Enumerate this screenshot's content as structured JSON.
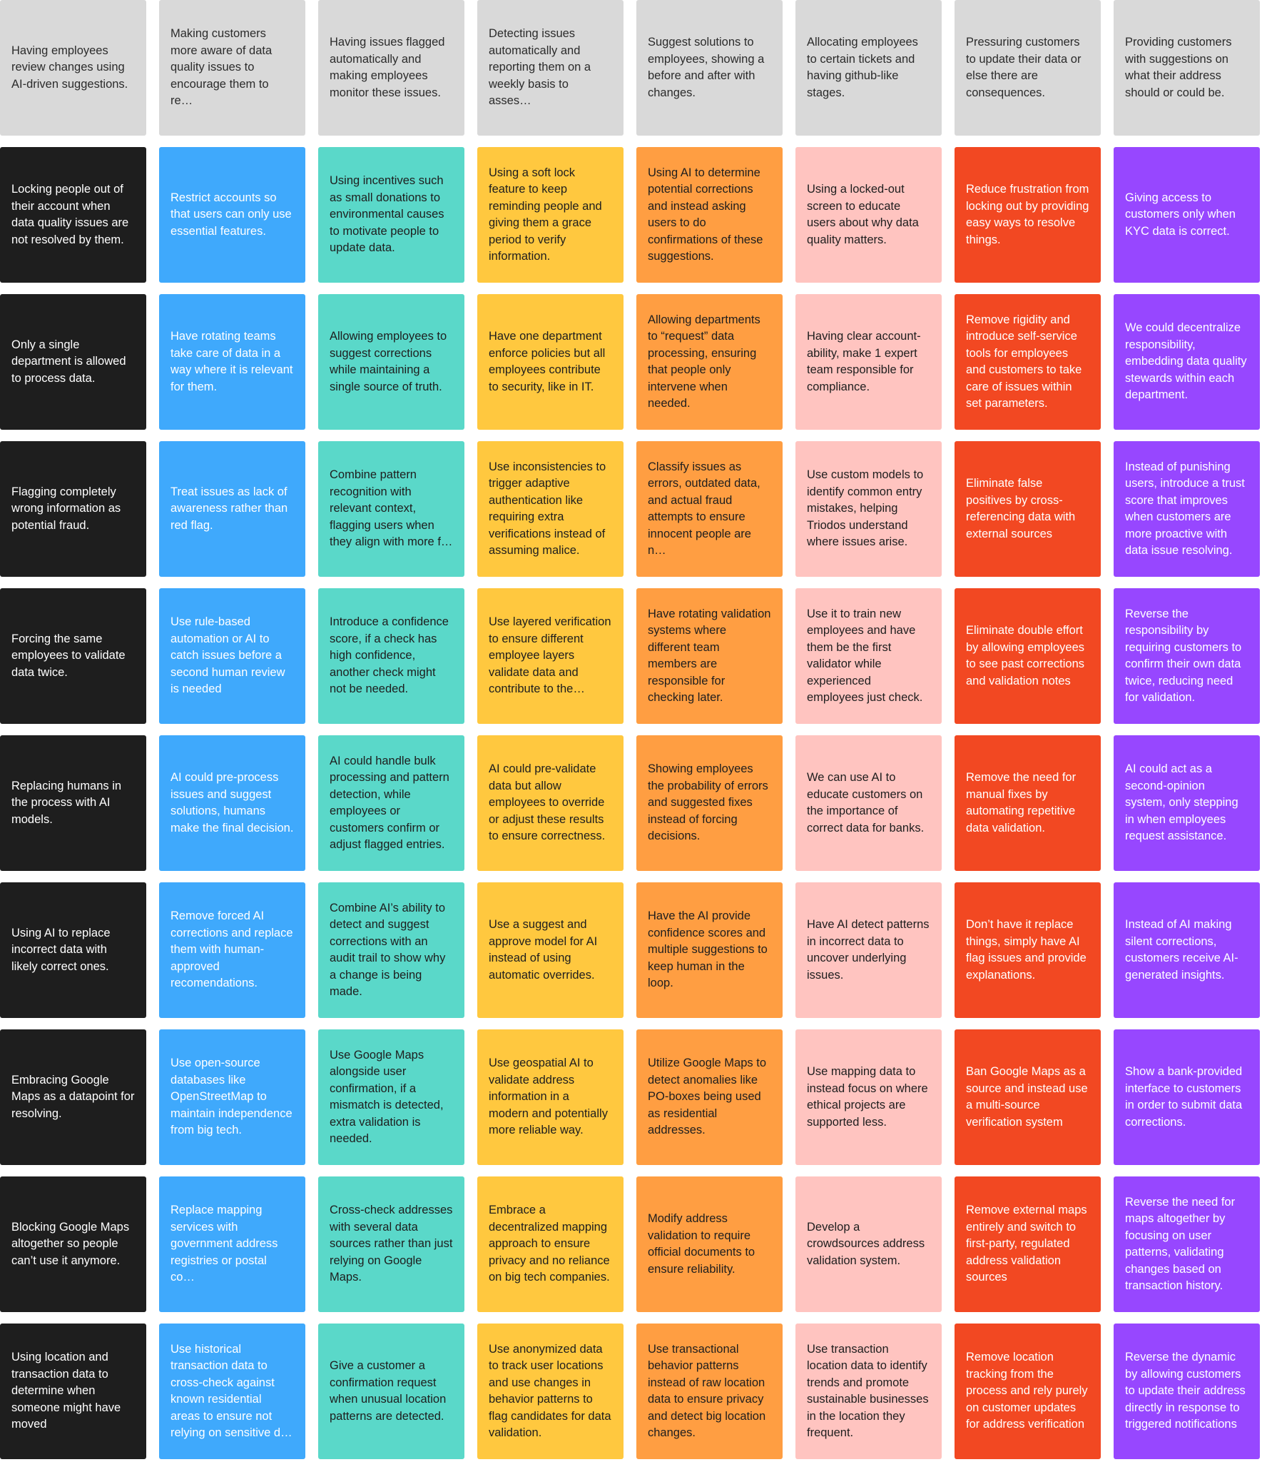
{
  "headers": [
    "Having employees review changes using AI-driven suggestions.",
    "Making customers more aware of data quality issues to encourage them to re…",
    "Having issues flagged automatically and making employees monitor these issues.",
    "Detecting issues automatically and reporting them on a weekly basis to asses…",
    "Suggest solutions to employees, showing a before and after with changes.",
    "Allocating employees to certain tickets and having github-like stages.",
    "Pressuring customers to update their data or else there are consequences.",
    "Providing customers with suggestions on what their address should or could be."
  ],
  "rows": [
    [
      "Locking people out of their account when data quality issues are not resolved by them.",
      "Restrict accounts so that users can only use essential features.",
      "Using incentives such as small donations to environmental causes to motivate people to update data.",
      "Using a soft lock feature to keep reminding people and giving them a grace period to verify information.",
      "Using AI to determine potential corrections and instead asking users to do confirmations of these suggestions.",
      "Using a locked-out screen to educate users about why data quality matters.",
      "Reduce frustration from locking out by providing easy ways to resolve things.",
      "Giving access to customers only when KYC data is correct."
    ],
    [
      "Only a single department is allowed to process data.",
      "Have rotating teams take care of data in a way where it is relevant for them.",
      "Allowing employees to suggest corrections while maintaining a single source of truth.",
      "Have one department enforce policies but all employees contribute to security, like in IT.",
      "Allowing departments to “request” data processing, ensuring that people only intervene when needed.",
      "Having clear account-ability, make 1 expert team  responsible for compliance.",
      "Remove rigidity and introduce self-service tools for employees and customers to take care of issues within set parameters.",
      "We could decentralize responsibility, embedding data quality stewards within each department."
    ],
    [
      "Flagging completely wrong information as potential fraud.",
      "Treat issues as lack of awareness rather than red flag.",
      "Combine pattern recognition with relevant context, flagging users when they align with more f…",
      "Use inconsistencies to trigger adaptive authentication like requiring extra verifications instead of assuming malice.",
      "Classify issues as errors, outdated data, and actual fraud attempts to ensure innocent people are n…",
      "Use custom models to identify common entry mistakes, helping Triodos understand where issues arise.",
      "Eliminate false positives by cross-referencing data with external sources",
      "Instead of punishing users, introduce a trust score that improves when customers are more proactive with data issue resolving."
    ],
    [
      "Forcing the same employees to validate data twice.",
      "Use rule-based automation or AI to catch issues before a second human review is needed",
      "Introduce a confidence score, if a check has high confidence, another check might not be needed.",
      "Use layered verification to ensure different employee layers validate data and contribute to the…",
      "Have rotating validation systems where different team members are responsible for checking later.",
      "Use it to train new employees and have them be the first validator while experienced employees just check.",
      "Eliminate double effort by allowing employees to see past corrections and validation notes",
      "Reverse the responsibility by requiring customers to confirm their own data twice, reducing need for validation."
    ],
    [
      "Replacing humans in the process with AI models.",
      "AI could pre-process issues and suggest solutions,  humans make the final decision.",
      "AI could handle bulk processing and pattern detection, while employees or customers confirm or adjust flagged entries.",
      "AI could pre-validate data but allow employees to override or adjust these results to ensure correctness.",
      "Showing employees the probability of errors and suggested fixes instead of forcing decisions.",
      "We can use AI to educate customers on the importance of correct data for banks.",
      "Remove the need for manual fixes by automating repetitive data validation.",
      "AI could act as a second-opinion system, only stepping in when employees request assistance."
    ],
    [
      "Using AI to replace incorrect data with likely correct ones.",
      "Remove forced AI corrections and replace them with human-approved recomendations.",
      "Combine AI’s ability to detect and suggest corrections with an audit trail to show why a change is being made.",
      "Use a suggest and approve model for AI instead of using automatic overrides.",
      "Have the AI provide confidence scores and multiple suggestions to keep human in the loop.",
      "Have AI detect patterns in incorrect data to uncover underlying issues.",
      "Don’t have it replace things, simply have AI flag issues and provide explanations.",
      "Instead of AI making silent corrections, customers receive AI-generated insights."
    ],
    [
      "Embracing Google Maps as a datapoint for resolving.",
      "Use open-source databases like OpenStreetMap to maintain independence from big tech.",
      "Use Google Maps alongside user confirmation, if a mismatch is detected, extra validation is needed.",
      "Use geospatial AI to validate address information in a modern and potentially more reliable way.",
      "Utilize Google Maps to detect anomalies like PO-boxes being used as residential addresses.",
      "Use mapping data to instead focus on where ethical projects are supported less.",
      "Ban Google Maps as a source and instead use a multi-source verification system",
      "Show a bank-provided interface to customers in order to submit data corrections."
    ],
    [
      "Blocking Google Maps altogether so people can’t use it anymore.",
      "Replace mapping services with government address registries or postal co…",
      "Cross-check addresses with several data sources rather than just relying on Google Maps.",
      "Embrace a decentralized mapping approach to ensure privacy and no reliance on big tech companies.",
      "Modify address validation to require official documents to ensure reliability.",
      "Develop a crowdsources address validation system.",
      "Remove external maps entirely and switch to first-party, regulated address validation sources",
      "Reverse the need for maps altogether by focusing on user patterns, validating changes based on transaction history."
    ],
    [
      "Using location and transaction data to determine when someone might have moved",
      "Use historical transaction data to cross-check against known residential areas to ensure not relying on sensitive d…",
      "Give a customer a confirmation request when unusual location patterns are detected.",
      "Use anonymized data to track user locations and use changes in behavior patterns to flag candidates for data validation.",
      "Use transactional behavior patterns instead of raw location data to ensure privacy and detect big location changes.",
      "Use transaction location data to identify trends and promote sustainable businesses in the location they frequent.",
      "Remove location tracking from the process and rely purely on customer updates for address verification",
      "Reverse the dynamic by allowing customers to update their address directly in response to triggered notifications"
    ]
  ]
}
